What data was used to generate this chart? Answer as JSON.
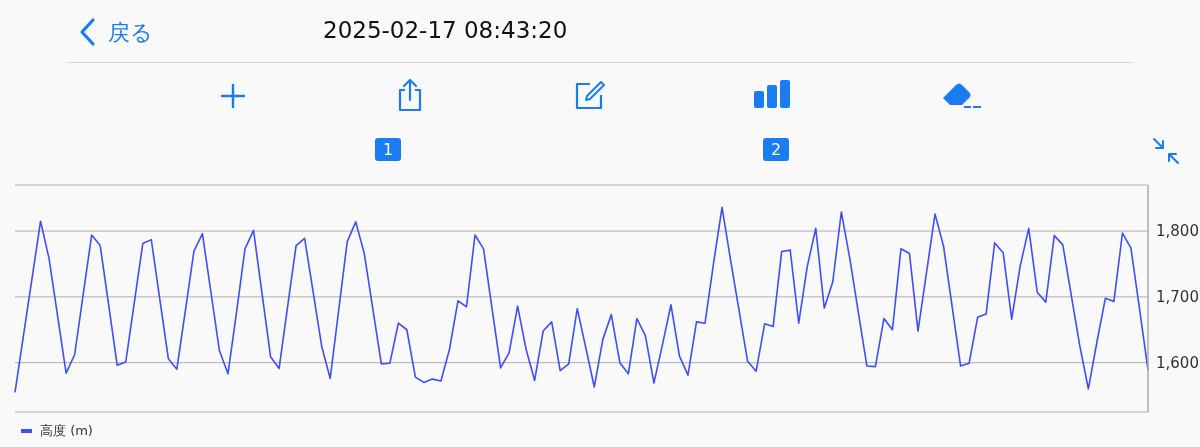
{
  "chart_data": {
    "type": "line",
    "title": "2025-02-17 08:43:20",
    "annotations": [
      "戻る",
      "1",
      "2"
    ],
    "categories": [
      null,
      null,
      null,
      null,
      null,
      null,
      null,
      null,
      null,
      null,
      null,
      null,
      null,
      null,
      null,
      null,
      null,
      null,
      null,
      null,
      null,
      null,
      null,
      null,
      null,
      null,
      null,
      null,
      null,
      null,
      null,
      null,
      null,
      null,
      null,
      null,
      null,
      null,
      null,
      null,
      null,
      null,
      null,
      null,
      null,
      null,
      null,
      null,
      null,
      null,
      null,
      null,
      null,
      null,
      null,
      null,
      null,
      null,
      null,
      null,
      null,
      null,
      null,
      null,
      null,
      null,
      null,
      null,
      null,
      null,
      null,
      null,
      null,
      null,
      null,
      null,
      null,
      null,
      null,
      null,
      null,
      null,
      null,
      null,
      null,
      null,
      null,
      null,
      null,
      null,
      null,
      null,
      null,
      null,
      null,
      null,
      null,
      null,
      null,
      null,
      null,
      null,
      null,
      null,
      null,
      null,
      null,
      null,
      null,
      null,
      null,
      null,
      null,
      null,
      null,
      null,
      null,
      null,
      null,
      null,
      null,
      null,
      null,
      null,
      null,
      null,
      null,
      null,
      null,
      null,
      null,
      null,
      null,
      null
    ],
    "series": [
      {
        "name": "高度 (m)",
        "color": "#3d4ff5",
        "values": [
          1555,
          1642,
          1728,
          1815,
          1758,
          1671,
          1584,
          1612,
          1703,
          1794,
          1778,
          1687,
          1596,
          1601,
          1691,
          1781,
          1787,
          1696,
          1606,
          1590,
          1679,
          1769,
          1796,
          1707,
          1618,
          1583,
          1676,
          1773,
          1801,
          1705,
          1609,
          1591,
          1685,
          1778,
          1789,
          1707,
          1625,
          1576,
          1680,
          1784,
          1814,
          1766,
          1682,
          1598,
          1599,
          1660,
          1650,
          1578,
          1570,
          1575,
          1572,
          1620,
          1694,
          1685,
          1794,
          1773,
          1682,
          1592,
          1615,
          1686,
          1620,
          1573,
          1648,
          1662,
          1588,
          1598,
          1682,
          1623,
          1563,
          1635,
          1673,
          1600,
          1583,
          1667,
          1641,
          1569,
          1627,
          1688,
          1610,
          1581,
          1662,
          1660,
          1751,
          1836,
          1756,
          1679,
          1602,
          1587,
          1659,
          1655,
          1769,
          1771,
          1660,
          1746,
          1804,
          1683,
          1723,
          1829,
          1758,
          1676,
          1595,
          1594,
          1667,
          1650,
          1773,
          1766,
          1648,
          1737,
          1826,
          1777,
          1686,
          1595,
          1599,
          1669,
          1674,
          1782,
          1767,
          1666,
          1747,
          1804,
          1707,
          1692,
          1793,
          1779,
          1702,
          1625,
          1560,
          1631,
          1698,
          1693,
          1797,
          1774,
          1682,
          1589
        ]
      }
    ],
    "ylim": [
      1525,
      1870
    ],
    "yticks": [
      {
        "value": 1600,
        "label": "1,600"
      },
      {
        "value": 1700,
        "label": "1,700"
      },
      {
        "value": 1800,
        "label": "1,800"
      }
    ],
    "grid": "y",
    "legend": "bottom left",
    "tick_labels": "y",
    "marker": "none",
    "line_style": "solid"
  }
}
